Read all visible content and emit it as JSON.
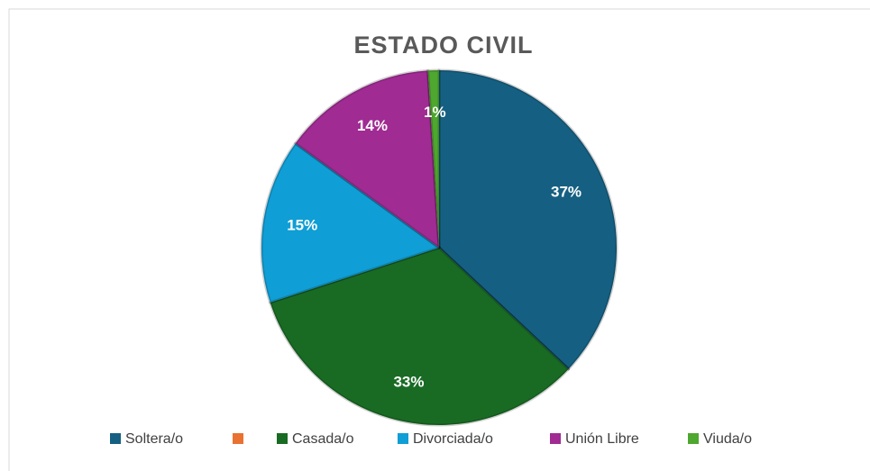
{
  "chart_data": {
    "type": "pie",
    "title": "ESTADO CIVIL",
    "categories": [
      "Soltera/o",
      null,
      "Casada/o",
      "Divorciada/o",
      "Unión Libre",
      "Viuda/o"
    ],
    "values": [
      37,
      0,
      33,
      15,
      14,
      1
    ],
    "value_labels": [
      "37%",
      null,
      "33%",
      "15%",
      "14%",
      "1%"
    ],
    "colors": [
      "#156082",
      "#e97132",
      "#196b24",
      "#0f9ed5",
      "#a02b93",
      "#4ea72e"
    ],
    "legend": "bottom"
  }
}
